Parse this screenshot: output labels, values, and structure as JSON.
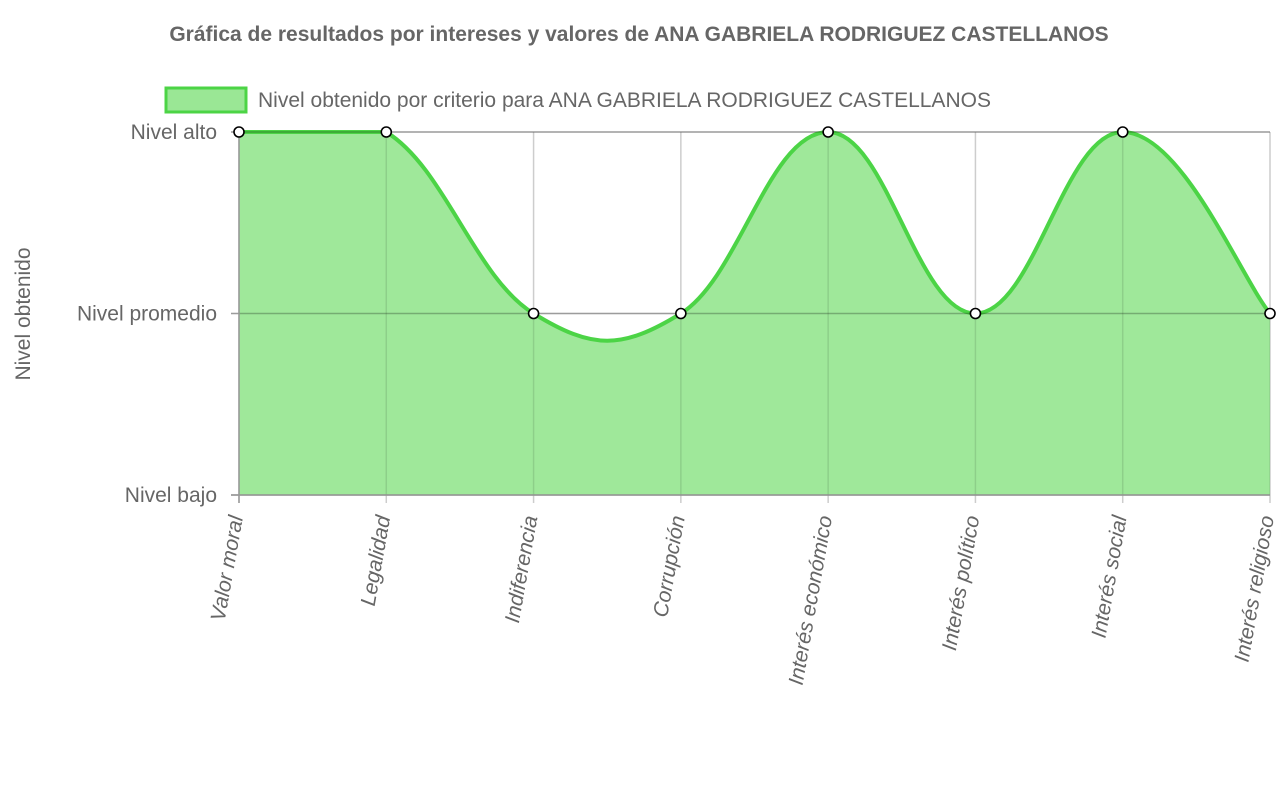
{
  "chart_data": {
    "type": "area",
    "title": "Gráfica de resultados por intereses y valores de ANA GABRIELA RODRIGUEZ CASTELLANOS",
    "ylabel": "Nivel obtenido",
    "xlabel": "",
    "categories": [
      "Valor moral",
      "Legalidad",
      "Indiferencia",
      "Corrupción",
      "Interés económico",
      "Interés político",
      "Interés social",
      "Interés religioso"
    ],
    "y_ticks": [
      "Nivel bajo",
      "Nivel promedio",
      "Nivel alto"
    ],
    "ylim": [
      0,
      2
    ],
    "grid": true,
    "legend_position": "top",
    "series": [
      {
        "name": "Nivel obtenido por criterio para ANA GABRIELA RODRIGUEZ CASTELLANOS",
        "values": [
          2,
          2,
          1,
          1,
          2,
          1,
          2,
          1
        ]
      }
    ],
    "colors": {
      "fill": "#9ae795",
      "line": "#4cd446",
      "grid": "#e5e5e5",
      "axis": "#999999",
      "text": "#666666"
    }
  }
}
